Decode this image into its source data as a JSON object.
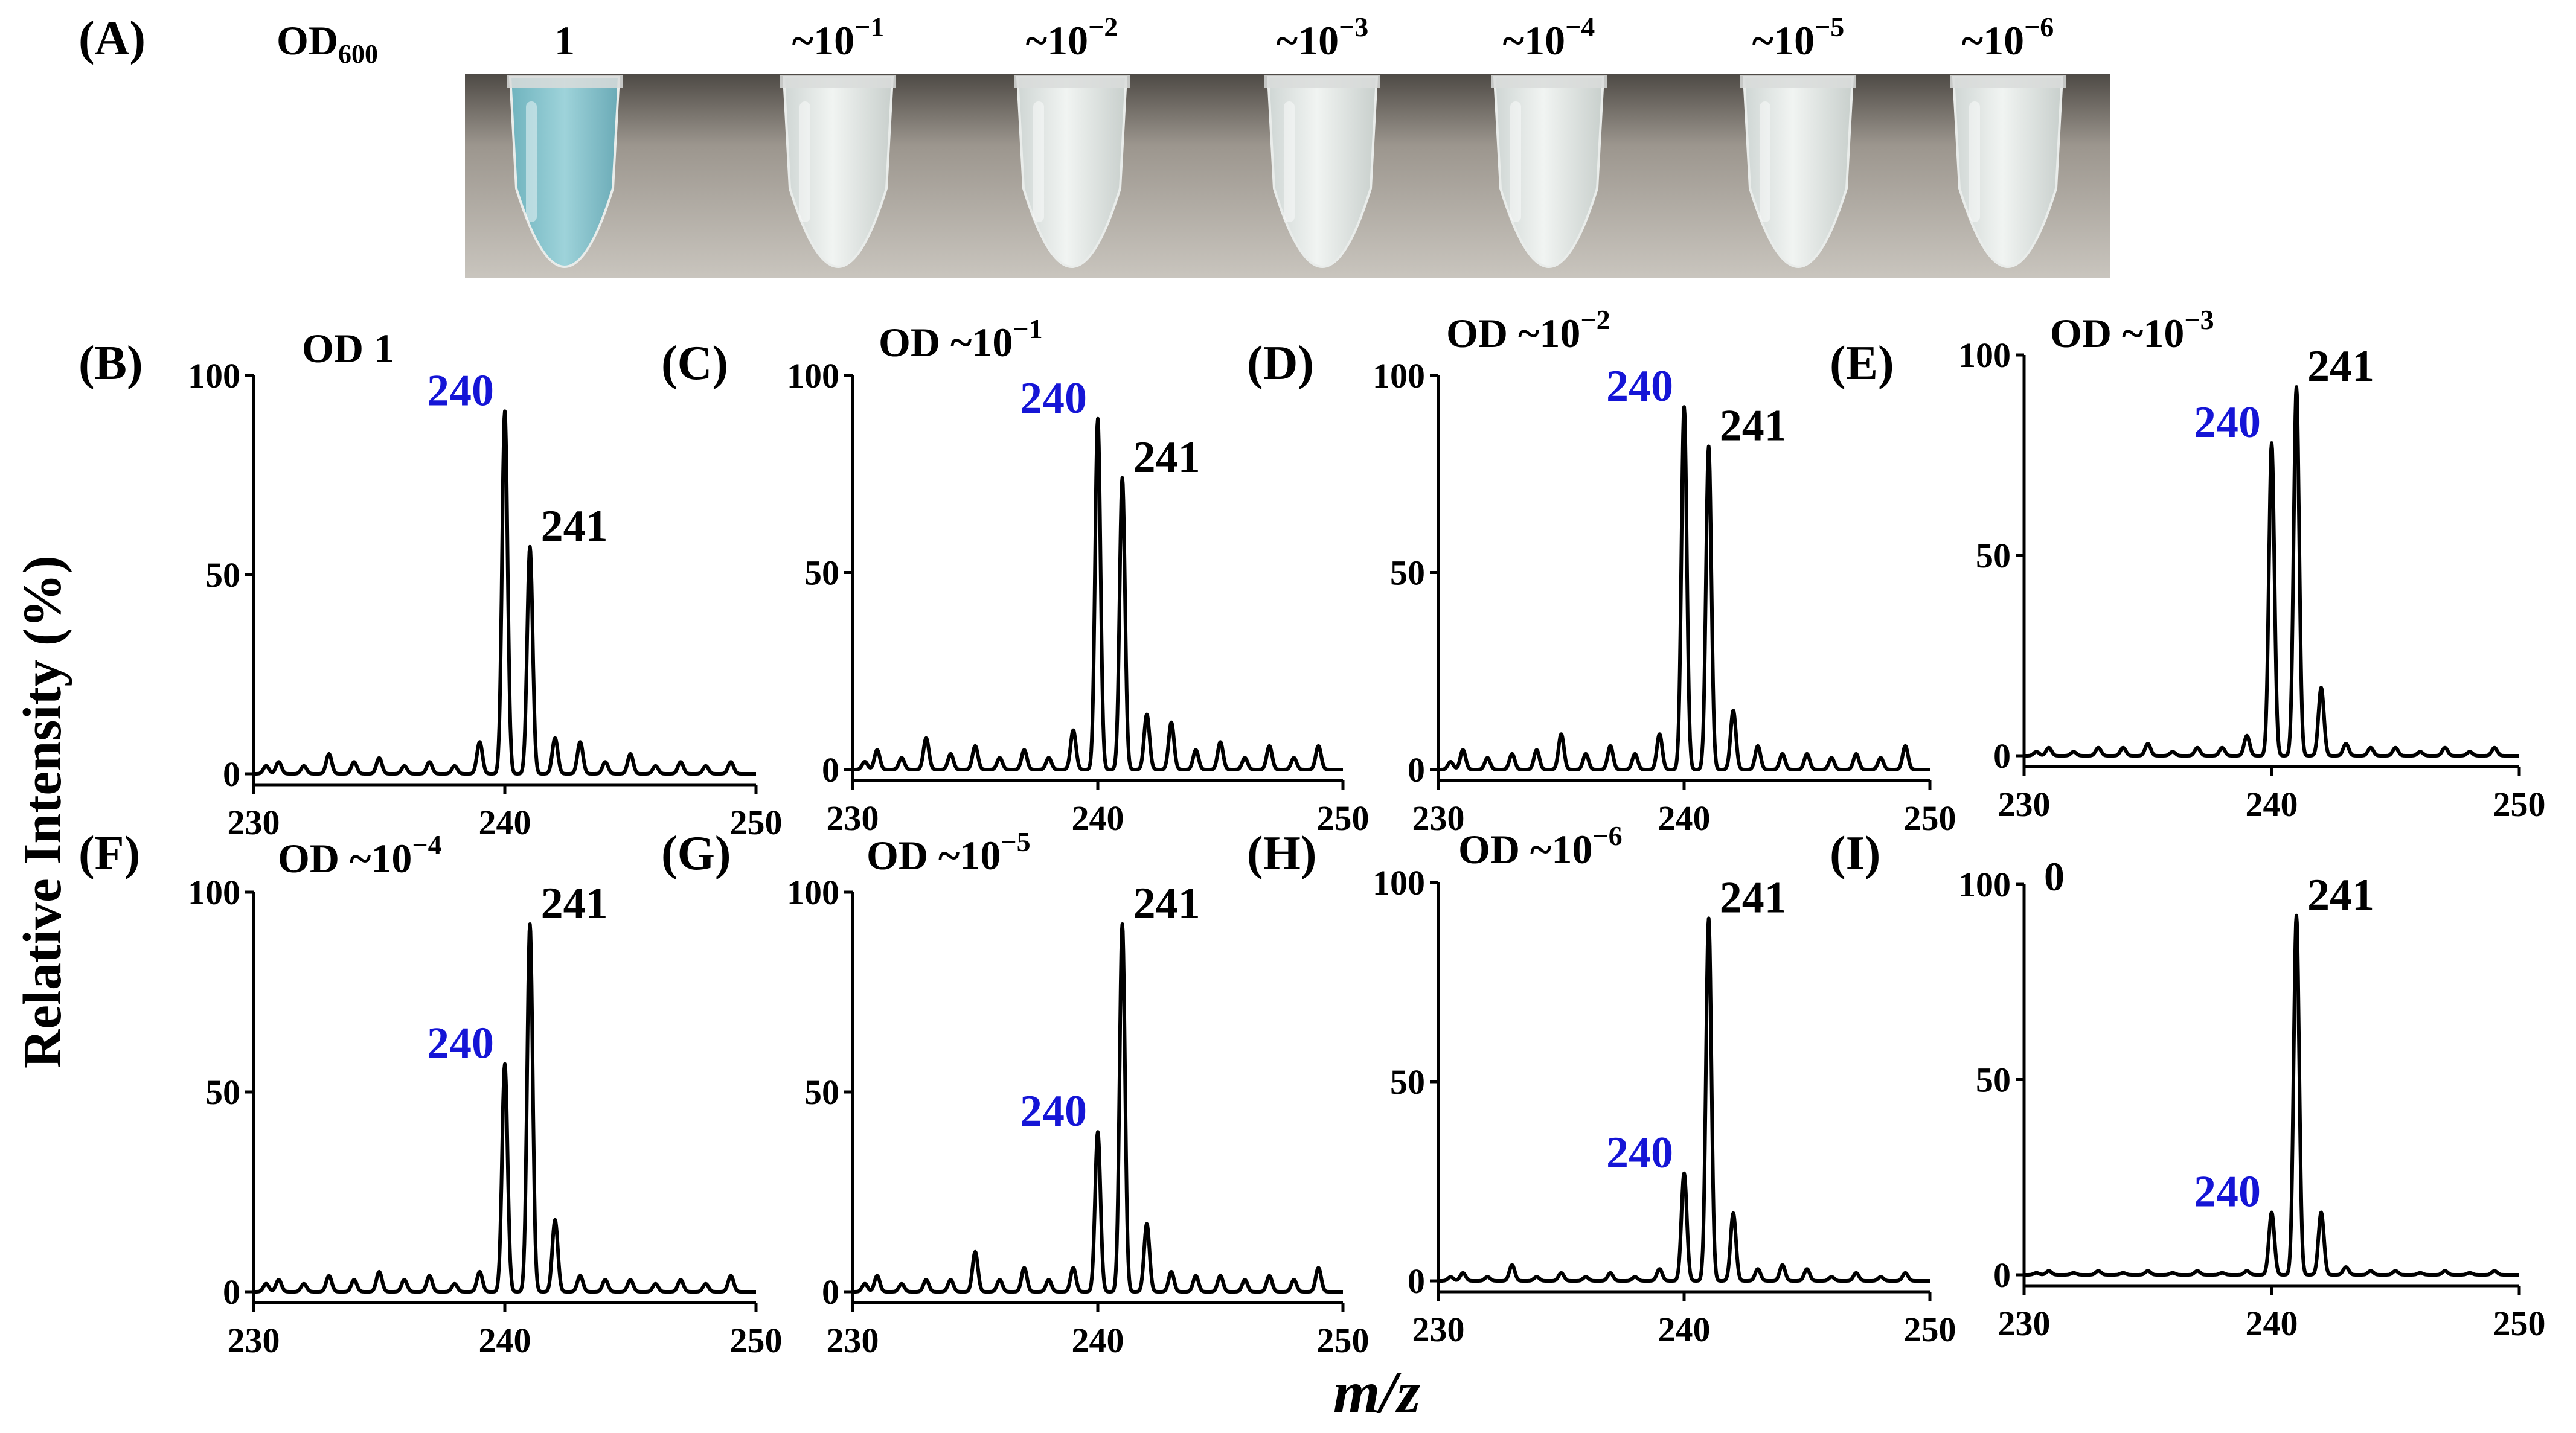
{
  "figure": {
    "y_axis_label": "Relative Intensity (%)",
    "x_axis_label": "m/z"
  },
  "panel_a": {
    "label": "(A)",
    "od_prefix": "OD",
    "od_subscript": "600",
    "tubes": [
      {
        "base": "1",
        "exp": ""
      },
      {
        "base": "~10",
        "exp": "−1"
      },
      {
        "base": "~10",
        "exp": "−2"
      },
      {
        "base": "~10",
        "exp": "−3"
      },
      {
        "base": "~10",
        "exp": "−4"
      },
      {
        "base": "~10",
        "exp": "−5"
      },
      {
        "base": "~10",
        "exp": "−6"
      }
    ],
    "colors": {
      "background": "#8f8a82",
      "tube": "#e4e8e6",
      "tube_blue": "#8cc6cf"
    }
  },
  "peak_labels": {
    "p240": "240",
    "p241": "241"
  },
  "chart_data": [
    {
      "panel": "(B)",
      "title": "OD 1",
      "type": "line",
      "xlim": [
        230,
        250
      ],
      "ylim": [
        0,
        100
      ],
      "xticks": [
        "230",
        "240",
        "250"
      ],
      "yticks": [
        "0",
        "50",
        "100"
      ],
      "peaks_mz": [
        230.5,
        231,
        232,
        233,
        234,
        235,
        236,
        237,
        238,
        239,
        240,
        241,
        242,
        243,
        244,
        245,
        246,
        247,
        248,
        249
      ],
      "peaks_int": [
        2,
        3,
        2,
        5,
        3,
        4,
        2,
        3,
        2,
        8,
        91,
        57,
        9,
        8,
        3,
        5,
        2,
        3,
        2,
        3
      ],
      "labels": [
        {
          "text": "240",
          "mz": 240,
          "int": 91,
          "color": "blue"
        },
        {
          "text": "241",
          "mz": 241,
          "int": 57,
          "color": "black"
        }
      ]
    },
    {
      "panel": "(C)",
      "title_base": "OD ~10",
      "title_exp": "−1",
      "type": "line",
      "xlim": [
        230,
        250
      ],
      "ylim": [
        0,
        100
      ],
      "xticks": [
        "230",
        "240",
        "250"
      ],
      "yticks": [
        "0",
        "50",
        "100"
      ],
      "peaks_mz": [
        230.5,
        231,
        232,
        233,
        234,
        235,
        236,
        237,
        238,
        239,
        240,
        241,
        242,
        243,
        244,
        245,
        246,
        247,
        248,
        249
      ],
      "peaks_int": [
        2,
        5,
        3,
        8,
        4,
        6,
        3,
        5,
        3,
        10,
        89,
        74,
        14,
        12,
        5,
        7,
        3,
        6,
        3,
        6
      ],
      "labels": [
        {
          "text": "240",
          "mz": 240,
          "int": 89,
          "color": "blue"
        },
        {
          "text": "241",
          "mz": 241,
          "int": 74,
          "color": "black"
        }
      ]
    },
    {
      "panel": "(D)",
      "title_base": "OD ~10",
      "title_exp": "−2",
      "type": "line",
      "xlim": [
        230,
        250
      ],
      "ylim": [
        0,
        100
      ],
      "xticks": [
        "230",
        "240",
        "250"
      ],
      "yticks": [
        "0",
        "50",
        "100"
      ],
      "peaks_mz": [
        230.5,
        231,
        232,
        233,
        234,
        235,
        236,
        237,
        238,
        239,
        240,
        241,
        242,
        243,
        244,
        245,
        246,
        247,
        248,
        249
      ],
      "peaks_int": [
        2,
        5,
        3,
        4,
        5,
        9,
        4,
        6,
        4,
        9,
        92,
        82,
        15,
        6,
        4,
        4,
        3,
        4,
        3,
        6
      ],
      "labels": [
        {
          "text": "240",
          "mz": 240,
          "int": 92,
          "color": "blue"
        },
        {
          "text": "241",
          "mz": 241,
          "int": 82,
          "color": "black"
        }
      ]
    },
    {
      "panel": "(E)",
      "title_base": "OD ~10",
      "title_exp": "−3",
      "type": "line",
      "xlim": [
        230,
        250
      ],
      "ylim": [
        0,
        100
      ],
      "xticks": [
        "230",
        "240",
        "250"
      ],
      "yticks": [
        "0",
        "50",
        "100"
      ],
      "peaks_mz": [
        230.5,
        231,
        232,
        233,
        234,
        235,
        236,
        237,
        238,
        239,
        240,
        241,
        242,
        243,
        244,
        245,
        246,
        247,
        248,
        249
      ],
      "peaks_int": [
        1,
        2,
        1,
        2,
        2,
        3,
        1,
        2,
        2,
        5,
        78,
        92,
        17,
        3,
        2,
        2,
        1,
        2,
        1,
        2
      ],
      "labels": [
        {
          "text": "240",
          "mz": 240,
          "int": 78,
          "color": "blue"
        },
        {
          "text": "241",
          "mz": 241,
          "int": 92,
          "color": "black"
        }
      ]
    },
    {
      "panel": "(F)",
      "title_base": "OD ~10",
      "title_exp": "−4",
      "type": "line",
      "xlim": [
        230,
        250
      ],
      "ylim": [
        0,
        100
      ],
      "xticks": [
        "230",
        "240",
        "250"
      ],
      "yticks": [
        "0",
        "50",
        "100"
      ],
      "peaks_mz": [
        230.5,
        231,
        232,
        233,
        234,
        235,
        236,
        237,
        238,
        239,
        240,
        241,
        242,
        243,
        244,
        245,
        246,
        247,
        248,
        249
      ],
      "peaks_int": [
        2,
        3,
        2,
        4,
        3,
        5,
        3,
        4,
        2,
        5,
        57,
        92,
        18,
        4,
        3,
        3,
        2,
        3,
        2,
        4
      ],
      "labels": [
        {
          "text": "240",
          "mz": 240,
          "int": 57,
          "color": "blue"
        },
        {
          "text": "241",
          "mz": 241,
          "int": 92,
          "color": "black"
        }
      ]
    },
    {
      "panel": "(G)",
      "title_base": "OD ~10",
      "title_exp": "−5",
      "type": "line",
      "xlim": [
        230,
        250
      ],
      "ylim": [
        0,
        100
      ],
      "xticks": [
        "230",
        "240",
        "250"
      ],
      "yticks": [
        "0",
        "50",
        "100"
      ],
      "peaks_mz": [
        230.5,
        231,
        232,
        233,
        234,
        235,
        236,
        237,
        238,
        239,
        240,
        241,
        242,
        243,
        244,
        245,
        246,
        247,
        248,
        249
      ],
      "peaks_int": [
        2,
        4,
        2,
        3,
        3,
        10,
        3,
        6,
        3,
        6,
        40,
        92,
        17,
        5,
        4,
        4,
        3,
        4,
        3,
        6
      ],
      "labels": [
        {
          "text": "240",
          "mz": 240,
          "int": 40,
          "color": "blue"
        },
        {
          "text": "241",
          "mz": 241,
          "int": 92,
          "color": "black"
        }
      ]
    },
    {
      "panel": "(H)",
      "title_base": "OD ~10",
      "title_exp": "−6",
      "type": "line",
      "xlim": [
        230,
        250
      ],
      "ylim": [
        0,
        100
      ],
      "xticks": [
        "230",
        "240",
        "250"
      ],
      "yticks": [
        "0",
        "50",
        "100"
      ],
      "peaks_mz": [
        230.5,
        231,
        232,
        233,
        234,
        235,
        236,
        237,
        238,
        239,
        240,
        241,
        242,
        243,
        244,
        245,
        246,
        247,
        248,
        249
      ],
      "peaks_int": [
        1,
        2,
        1,
        4,
        1,
        2,
        1,
        2,
        1,
        3,
        27,
        91,
        17,
        3,
        4,
        3,
        1,
        2,
        1,
        2
      ],
      "labels": [
        {
          "text": "240",
          "mz": 240,
          "int": 27,
          "color": "blue"
        },
        {
          "text": "241",
          "mz": 241,
          "int": 91,
          "color": "black"
        }
      ]
    },
    {
      "panel": "(I)",
      "title": "0",
      "type": "line",
      "xlim": [
        230,
        250
      ],
      "ylim": [
        0,
        100
      ],
      "xticks": [
        "230",
        "240",
        "250"
      ],
      "yticks": [
        "0",
        "50",
        "100"
      ],
      "peaks_mz": [
        230.5,
        231,
        232,
        233,
        234,
        235,
        236,
        237,
        238,
        239,
        240,
        241,
        242,
        243,
        244,
        245,
        246,
        247,
        248,
        249
      ],
      "peaks_int": [
        0.5,
        1,
        0.5,
        1,
        0.5,
        1,
        0.5,
        1,
        0.5,
        1,
        16,
        92,
        16,
        2,
        1,
        1,
        0.5,
        1,
        0.5,
        1
      ],
      "labels": [
        {
          "text": "240",
          "mz": 240,
          "int": 16,
          "color": "blue"
        },
        {
          "text": "241",
          "mz": 241,
          "int": 92,
          "color": "black"
        }
      ]
    }
  ]
}
